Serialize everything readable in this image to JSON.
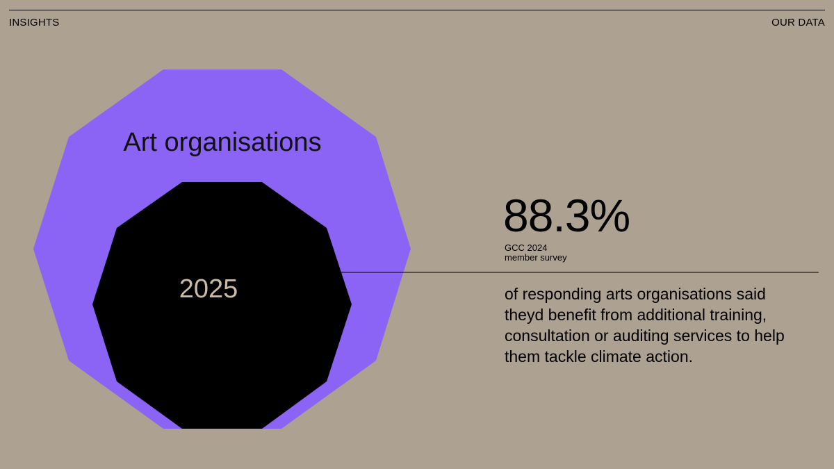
{
  "header": {
    "left_label": "INSIGHTS",
    "right_label": "OUR DATA"
  },
  "graphic": {
    "category": "Art organisations",
    "year": "2025",
    "outer_color": "#8b63f5",
    "inner_color": "#000000"
  },
  "stat": {
    "value": "88.3%",
    "source_line1": "GCC 2024",
    "source_line2": "member survey",
    "description": "of responding arts organisations said theyd benefit from additional training, consultation or auditing services to help them tackle climate action."
  }
}
